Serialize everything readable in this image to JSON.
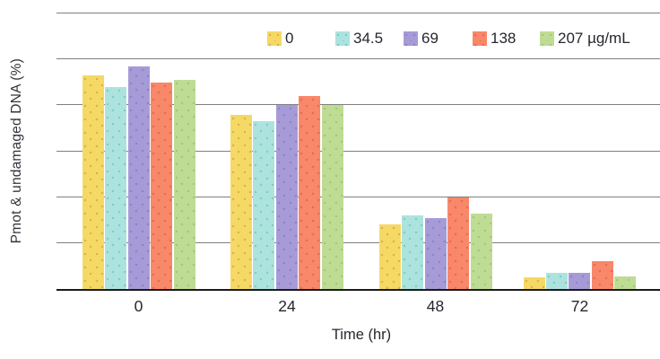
{
  "chart_data": {
    "type": "bar",
    "title": "",
    "xlabel": "Time (hr)",
    "ylabel": "Pmot & undamaged DNA (%)",
    "categories": [
      "0",
      "24",
      "48",
      "72"
    ],
    "series": [
      {
        "name": "0",
        "color": "#F5D965",
        "dot_color": "#E0A94E",
        "values": [
          93,
          76,
          28,
          5
        ]
      },
      {
        "name": "34.5",
        "color": "#ADE3DE",
        "dot_color": "#7BCAC4",
        "values": [
          88,
          73,
          32,
          7
        ]
      },
      {
        "name": "69",
        "color": "#A79BD7",
        "dot_color": "#8D7FC7",
        "values": [
          97,
          80,
          31,
          7
        ]
      },
      {
        "name": "138",
        "color": "#F9876A",
        "dot_color": "#E06B4F",
        "values": [
          90,
          84,
          40,
          12
        ]
      },
      {
        "name": "207 µg/mL",
        "color": "#BFDC95",
        "dot_color": "#A2C672",
        "values": [
          91,
          80,
          33,
          5.5
        ]
      }
    ],
    "ylim": [
      0,
      120
    ],
    "grid_step": 20,
    "grid": true,
    "legend_position": "top-right-inside",
    "gridline_color": "#7F7F7F",
    "axis_color": "#1A1A1A",
    "text_color": "#26262E"
  }
}
